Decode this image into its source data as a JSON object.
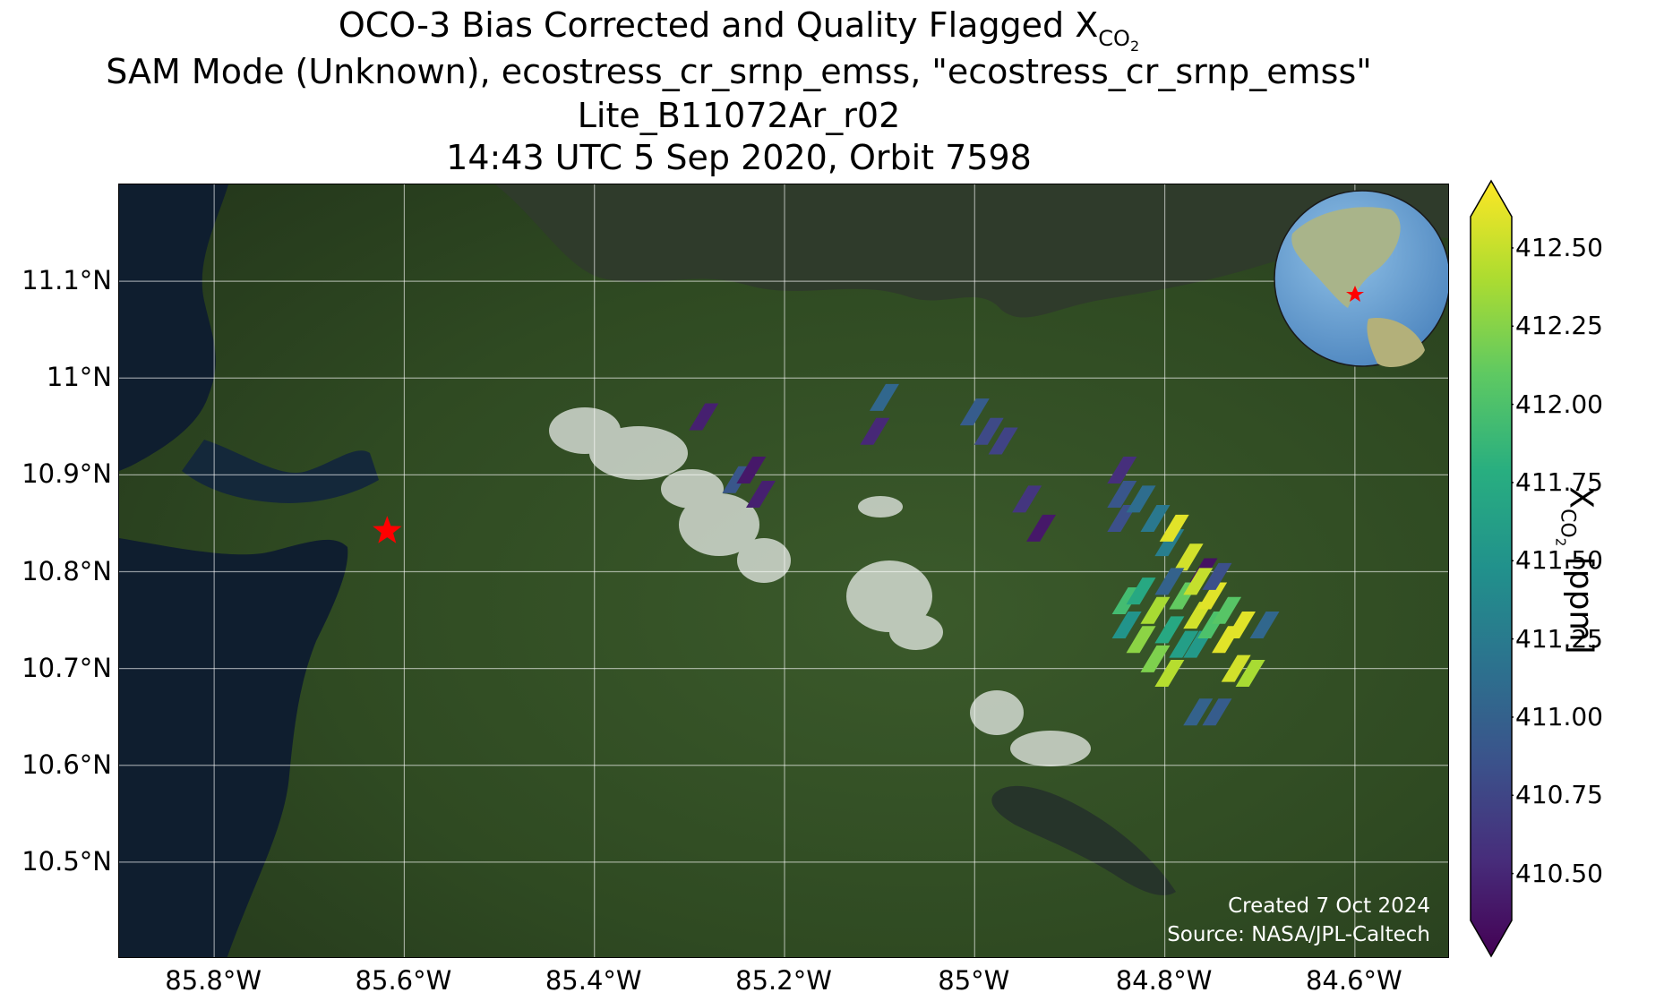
{
  "title": {
    "line1_prefix": "OCO-3 Bias Corrected and Quality Flagged X",
    "line1_sub": "CO",
    "line1_subsub": "2",
    "line2": "SAM Mode (Unknown), ecostress_cr_srnp_emss, \"ecostress_cr_srnp_emss\"",
    "line3": "Lite_B11072Ar_r02",
    "line4": "14:43 UTC 5 Sep 2020, Orbit 7598"
  },
  "map": {
    "extent": {
      "lon_min": -85.9,
      "lon_max": -84.5,
      "lat_min": 10.4,
      "lat_max": 11.2
    },
    "lat_ticks": [
      {
        "value": 11.1,
        "label": "11.1°N"
      },
      {
        "value": 11.0,
        "label": "11°N"
      },
      {
        "value": 10.9,
        "label": "10.9°N"
      },
      {
        "value": 10.8,
        "label": "10.8°N"
      },
      {
        "value": 10.7,
        "label": "10.7°N"
      },
      {
        "value": 10.6,
        "label": "10.6°N"
      },
      {
        "value": 10.5,
        "label": "10.5°N"
      }
    ],
    "lon_ticks": [
      {
        "value": -85.8,
        "label": "85.8°W"
      },
      {
        "value": -85.6,
        "label": "85.6°W"
      },
      {
        "value": -85.4,
        "label": "85.4°W"
      },
      {
        "value": -85.2,
        "label": "85.2°W"
      },
      {
        "value": -85.0,
        "label": "85°W"
      },
      {
        "value": -84.8,
        "label": "84.8°W"
      },
      {
        "value": -84.6,
        "label": "84.6°W"
      }
    ],
    "target_marker": {
      "lon": -85.618,
      "lat": 10.842,
      "color": "#ff0000"
    },
    "land_color": "#2f4a22",
    "water_color": "#0f1e2f",
    "lake_color": "#2f3b2b"
  },
  "colorbar": {
    "min": 410.35,
    "max": 412.6,
    "ticks": [
      {
        "value": 412.5,
        "label": "412.50"
      },
      {
        "value": 412.25,
        "label": "412.25"
      },
      {
        "value": 412.0,
        "label": "412.00"
      },
      {
        "value": 411.75,
        "label": "411.75"
      },
      {
        "value": 411.5,
        "label": "411.50"
      },
      {
        "value": 411.25,
        "label": "411.25"
      },
      {
        "value": 411.0,
        "label": "411.00"
      },
      {
        "value": 410.75,
        "label": "410.75"
      },
      {
        "value": 410.5,
        "label": "410.50"
      }
    ],
    "label_prefix": "X",
    "label_sub": "CO",
    "label_subsub": "2",
    "label_unit": " [ppm]",
    "colormap": "viridis"
  },
  "chart_data": {
    "type": "scatter",
    "variable": "XCO2",
    "unit": "ppm",
    "points": [
      {
        "lon": -85.285,
        "lat": 10.96,
        "xco2": 410.55
      },
      {
        "lon": -85.25,
        "lat": 10.895,
        "xco2": 410.95
      },
      {
        "lon": -85.235,
        "lat": 10.905,
        "xco2": 410.5
      },
      {
        "lon": -85.225,
        "lat": 10.88,
        "xco2": 410.55
      },
      {
        "lon": -85.095,
        "lat": 10.98,
        "xco2": 411.1
      },
      {
        "lon": -85.105,
        "lat": 10.945,
        "xco2": 410.6
      },
      {
        "lon": -85.0,
        "lat": 10.965,
        "xco2": 411.0
      },
      {
        "lon": -84.985,
        "lat": 10.945,
        "xco2": 410.85
      },
      {
        "lon": -84.97,
        "lat": 10.935,
        "xco2": 410.8
      },
      {
        "lon": -84.945,
        "lat": 10.875,
        "xco2": 410.7
      },
      {
        "lon": -84.93,
        "lat": 10.845,
        "xco2": 410.5
      },
      {
        "lon": -84.845,
        "lat": 10.905,
        "xco2": 410.65
      },
      {
        "lon": -84.845,
        "lat": 10.88,
        "xco2": 410.95
      },
      {
        "lon": -84.845,
        "lat": 10.855,
        "xco2": 410.9
      },
      {
        "lon": -84.825,
        "lat": 10.875,
        "xco2": 411.15
      },
      {
        "lon": -84.81,
        "lat": 10.855,
        "xco2": 411.25
      },
      {
        "lon": -84.795,
        "lat": 10.83,
        "xco2": 411.3
      },
      {
        "lon": -84.79,
        "lat": 10.845,
        "xco2": 412.5
      },
      {
        "lon": -84.775,
        "lat": 10.815,
        "xco2": 412.45
      },
      {
        "lon": -84.76,
        "lat": 10.8,
        "xco2": 410.45
      },
      {
        "lon": -84.84,
        "lat": 10.77,
        "xco2": 411.9
      },
      {
        "lon": -84.84,
        "lat": 10.745,
        "xco2": 411.5
      },
      {
        "lon": -84.825,
        "lat": 10.78,
        "xco2": 411.7
      },
      {
        "lon": -84.825,
        "lat": 10.73,
        "xco2": 412.2
      },
      {
        "lon": -84.81,
        "lat": 10.76,
        "xco2": 412.3
      },
      {
        "lon": -84.81,
        "lat": 10.71,
        "xco2": 412.15
      },
      {
        "lon": -84.795,
        "lat": 10.79,
        "xco2": 411.05
      },
      {
        "lon": -84.795,
        "lat": 10.74,
        "xco2": 411.7
      },
      {
        "lon": -84.795,
        "lat": 10.695,
        "xco2": 412.35
      },
      {
        "lon": -84.78,
        "lat": 10.775,
        "xco2": 412.05
      },
      {
        "lon": -84.78,
        "lat": 10.725,
        "xco2": 411.6
      },
      {
        "lon": -84.765,
        "lat": 10.79,
        "xco2": 412.4
      },
      {
        "lon": -84.765,
        "lat": 10.755,
        "xco2": 412.45
      },
      {
        "lon": -84.765,
        "lat": 10.725,
        "xco2": 411.55
      },
      {
        "lon": -84.75,
        "lat": 10.775,
        "xco2": 412.5
      },
      {
        "lon": -84.75,
        "lat": 10.745,
        "xco2": 411.95
      },
      {
        "lon": -84.745,
        "lat": 10.795,
        "xco2": 410.9
      },
      {
        "lon": -84.735,
        "lat": 10.76,
        "xco2": 412.0
      },
      {
        "lon": -84.735,
        "lat": 10.73,
        "xco2": 412.5
      },
      {
        "lon": -84.725,
        "lat": 10.7,
        "xco2": 412.45
      },
      {
        "lon": -84.72,
        "lat": 10.745,
        "xco2": 412.5
      },
      {
        "lon": -84.71,
        "lat": 10.695,
        "xco2": 412.3
      },
      {
        "lon": -84.695,
        "lat": 10.745,
        "xco2": 411.1
      },
      {
        "lon": -84.765,
        "lat": 10.655,
        "xco2": 411.05
      },
      {
        "lon": -84.745,
        "lat": 10.655,
        "xco2": 411.0
      }
    ]
  },
  "credits": {
    "created": "Created 7 Oct 2024",
    "source": "Source: NASA/JPL-Caltech"
  }
}
